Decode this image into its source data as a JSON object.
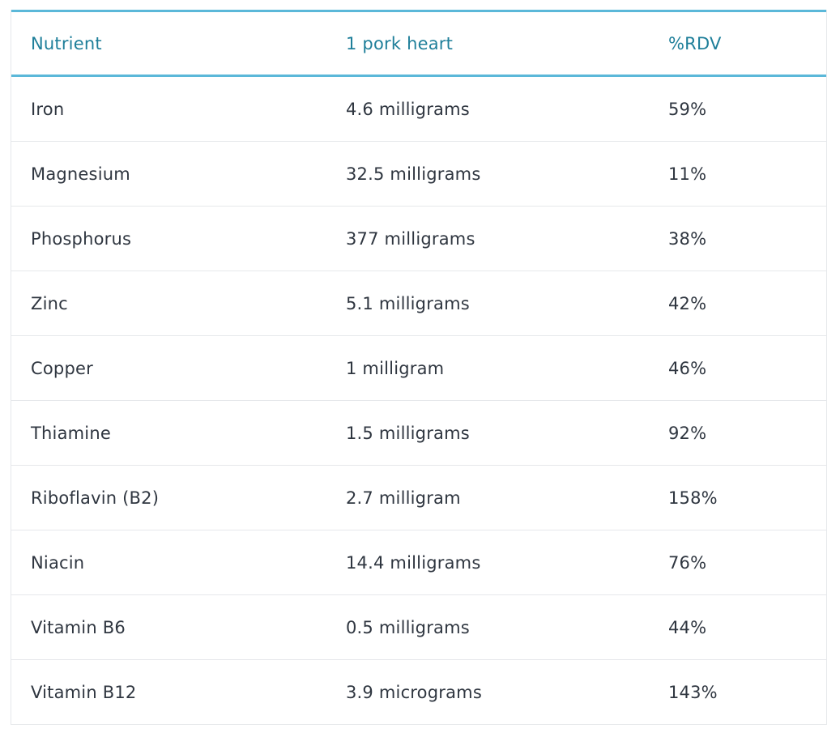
{
  "table": {
    "headers": [
      "Nutrient",
      "1 pork heart",
      "%RDV"
    ],
    "rows": [
      [
        "Iron",
        "4.6 milligrams",
        "59%"
      ],
      [
        "Magnesium",
        "32.5 milligrams",
        "11%"
      ],
      [
        "Phosphorus",
        "377 milligrams",
        "38%"
      ],
      [
        "Zinc",
        "5.1 milligrams",
        "42%"
      ],
      [
        "Copper",
        "1 milligram",
        "46%"
      ],
      [
        "Thiamine",
        "1.5 milligrams",
        "92%"
      ],
      [
        "Riboflavin (B2)",
        "2.7 milligram",
        "158%"
      ],
      [
        "Niacin",
        "14.4 milligrams",
        "76%"
      ],
      [
        "Vitamin B6",
        "0.5 milligrams",
        "44%"
      ],
      [
        "Vitamin B12",
        "3.9 micrograms",
        "143%"
      ]
    ]
  },
  "colors": {
    "header_text": "#1f7f9a",
    "header_rule": "#5bb8d9",
    "body_text": "#2f3640",
    "row_divider": "#e6e8eb"
  }
}
